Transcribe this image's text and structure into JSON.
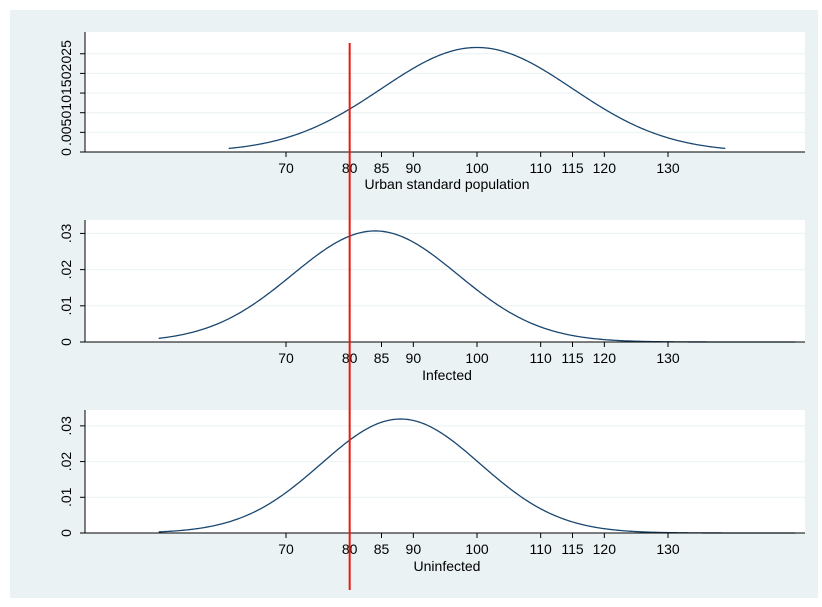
{
  "chart_data": [
    {
      "type": "line",
      "title": "",
      "xlabel": "Urban standard population",
      "ylabel": "",
      "xticks": [
        70,
        80,
        85,
        90,
        100,
        110,
        115,
        120,
        130
      ],
      "xtick_labels": [
        "70",
        "80",
        "85",
        "90",
        "100",
        "110",
        "115",
        "120",
        "130"
      ],
      "yticks": [
        0,
        0.005,
        0.01,
        0.015,
        0.02,
        0.025
      ],
      "ytick_labels": [
        "0",
        ".005",
        ".01",
        ".015",
        ".02",
        ".025"
      ],
      "xlim": [
        50,
        150
      ],
      "ylim": [
        0,
        0.0285
      ],
      "grid": "horizontal",
      "series": [
        {
          "type": "normal-density",
          "mean": 100,
          "sd": 15,
          "x_range": [
            61,
            139
          ],
          "color": "#1a476f"
        }
      ],
      "reference_line": {
        "x": 80,
        "color": "#e8190f"
      }
    },
    {
      "type": "line",
      "title": "",
      "xlabel": "Infected",
      "ylabel": "",
      "xticks": [
        70,
        80,
        85,
        90,
        100,
        110,
        115,
        120,
        130
      ],
      "xtick_labels": [
        "70",
        "80",
        "85",
        "90",
        "100",
        "110",
        "115",
        "120",
        "130"
      ],
      "yticks": [
        0,
        0.01,
        0.02,
        0.03
      ],
      "ytick_labels": [
        "0",
        ".01",
        ".02",
        ".03"
      ],
      "xlim": [
        50,
        150
      ],
      "ylim": [
        0,
        0.0315
      ],
      "grid": "horizontal",
      "series": [
        {
          "type": "normal-density",
          "mean": 84,
          "sd": 13,
          "x_range": [
            50,
            150
          ],
          "color": "#1a476f"
        }
      ],
      "reference_line": {
        "x": 80,
        "color": "#e8190f"
      }
    },
    {
      "type": "line",
      "title": "",
      "xlabel": "Uninfected",
      "ylabel": "",
      "xticks": [
        70,
        80,
        85,
        90,
        100,
        110,
        115,
        120,
        130
      ],
      "xtick_labels": [
        "70",
        "80",
        "85",
        "90",
        "100",
        "110",
        "115",
        "120",
        "130"
      ],
      "yticks": [
        0,
        0.01,
        0.02,
        0.03
      ],
      "ytick_labels": [
        "0",
        ".01",
        ".02",
        ".03"
      ],
      "xlim": [
        50,
        150
      ],
      "ylim": [
        0,
        0.0322
      ],
      "grid": "horizontal",
      "series": [
        {
          "type": "normal-density",
          "mean": 88,
          "sd": 12.5,
          "x_range": [
            50,
            150
          ],
          "color": "#1a476f"
        }
      ],
      "reference_line": {
        "x": 80,
        "color": "#e8190f"
      }
    }
  ],
  "colors": {
    "background": "#eaf2f3",
    "plot_area": "#ffffff",
    "grid": "#eaf2f3",
    "curve": "#1a476f",
    "reference_line": "#e8190f"
  }
}
